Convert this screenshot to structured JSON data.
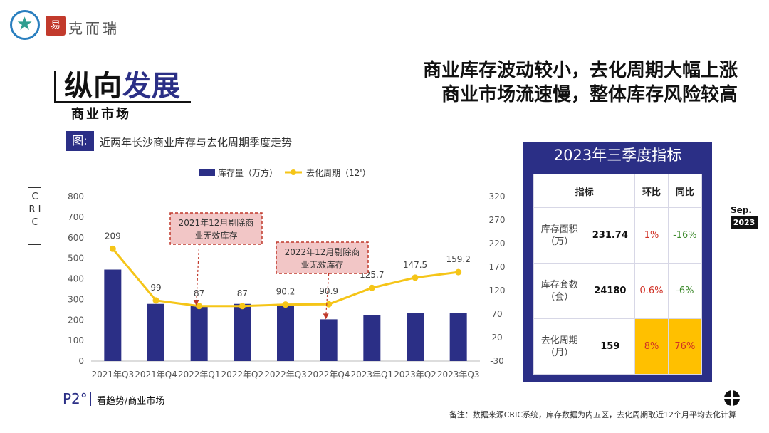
{
  "header": {
    "brand_seal_text": "克而瑞",
    "brand_name": "克而瑞"
  },
  "section": {
    "title_part1": "纵向",
    "title_part2": "发展",
    "subtitle": "商业市场"
  },
  "headline": {
    "line1": "商业库存波动较小，去化周期大幅上涨",
    "line2": "商业市场流速慢，整体库存风险较高"
  },
  "figure": {
    "tag": "图:",
    "caption": "近两年长沙商业库存与去化周期季度走势",
    "side_label": "C R I C"
  },
  "chart_data": {
    "type": "bar",
    "categories": [
      "2021年Q3",
      "2021年Q4",
      "2022年Q1",
      "2022年Q2",
      "2022年Q3",
      "2022年Q4",
      "2023年Q1",
      "2023年Q2",
      "2023年Q3"
    ],
    "series": [
      {
        "name": "库存量（万方）",
        "type": "bar",
        "axis": "left",
        "color": "#2b2f86",
        "values": [
          445,
          278,
          270,
          278,
          278,
          203,
          222,
          232,
          232
        ]
      },
      {
        "name": "去化周期（12'）",
        "type": "line",
        "axis": "right",
        "color": "#f5c518",
        "values": [
          209,
          99,
          87,
          87,
          90.2,
          90.9,
          125.7,
          147.5,
          159.2
        ],
        "labels": [
          "209",
          "99",
          "87",
          "87",
          "90.2",
          "90.9",
          "125.7",
          "147.5",
          "159.2"
        ]
      }
    ],
    "left_axis": {
      "ylim": [
        0,
        800
      ],
      "ticks": [
        "0",
        "100",
        "200",
        "300",
        "400",
        "500",
        "600",
        "700",
        "800"
      ]
    },
    "right_axis": {
      "ylim": [
        -30,
        320
      ],
      "ticks": [
        "-30",
        "20",
        "70",
        "120",
        "170",
        "220",
        "270",
        "320"
      ]
    },
    "legend_position": "top",
    "annotations": [
      {
        "text_line1": "2021年12月剔除商",
        "text_line2": "业无效库存",
        "points_to": "2022年Q1"
      },
      {
        "text_line1": "2022年12月剔除商",
        "text_line2": "业无效库存",
        "points_to": "2022年Q4"
      }
    ]
  },
  "panel": {
    "title": "2023年三季度指标",
    "columns": [
      "指标",
      "环比",
      "同比"
    ],
    "rows": [
      {
        "label_line1": "库存面积",
        "label_line2": "（万）",
        "value": "231.74",
        "mom": "1%",
        "yoy": "-16%"
      },
      {
        "label_line1": "库存套数",
        "label_line2": "（套）",
        "value": "24180",
        "mom": "0.6%",
        "yoy": "-6%"
      },
      {
        "label_line1": "去化周期",
        "label_line2": "（月）",
        "value": "159",
        "mom": "8%",
        "yoy": "76%"
      }
    ]
  },
  "date_tag": {
    "month": "Sep.",
    "year": "2023"
  },
  "footer": {
    "page": "P2°",
    "section": "看趋势/商业市场",
    "note": "备注：数据来源CRIC系统，库存数据为内五区，去化周期取近12个月平均去化计算"
  }
}
